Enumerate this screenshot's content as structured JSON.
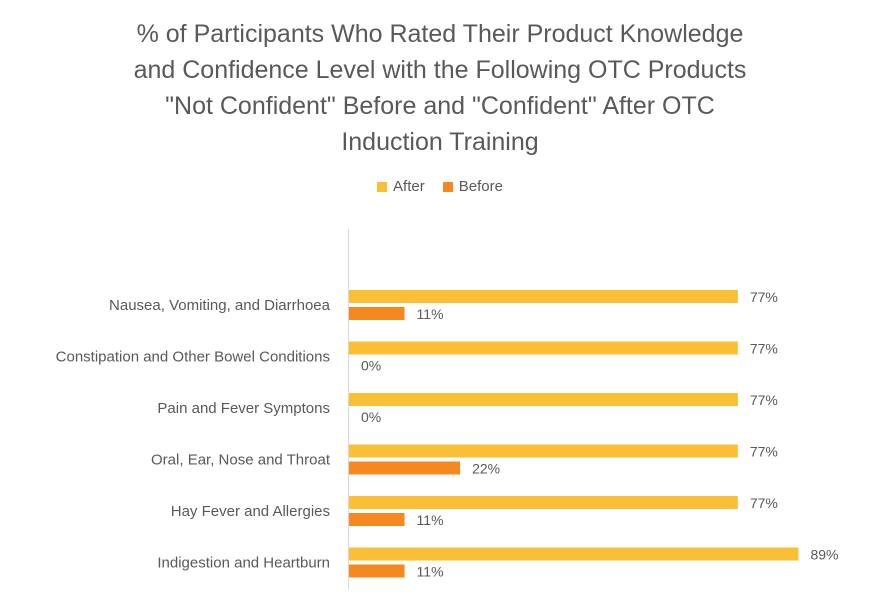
{
  "chart_data": {
    "type": "bar",
    "orientation": "horizontal",
    "title_lines": [
      "% of Participants Who Rated Their Product Knowledge",
      "and Confidence Level with the Following OTC Products",
      "\"Not Confident\" Before and \"Confident\" After OTC",
      "Induction Training"
    ],
    "categories": [
      "Nausea, Vomiting, and Diarrhoea",
      "Constipation and Other Bowel Conditions",
      "Pain and Fever Symptons",
      "Oral, Ear, Nose and Throat",
      "Hay Fever and Allergies",
      "Indigestion and Heartburn"
    ],
    "series": [
      {
        "name": "After",
        "color": "#FBBF36",
        "values": [
          77,
          77,
          77,
          77,
          77,
          89
        ],
        "labels": [
          "77%",
          "77%",
          "77%",
          "77%",
          "77%",
          "89%"
        ]
      },
      {
        "name": "Before",
        "color": "#F5891F",
        "values": [
          11,
          0,
          0,
          22,
          11,
          11
        ],
        "labels": [
          "11%",
          "0%",
          "0%",
          "22%",
          "11%",
          "11%"
        ]
      }
    ],
    "xlim": [
      0,
      100
    ],
    "legend_position": "top",
    "grid": false,
    "data_labels": true
  }
}
